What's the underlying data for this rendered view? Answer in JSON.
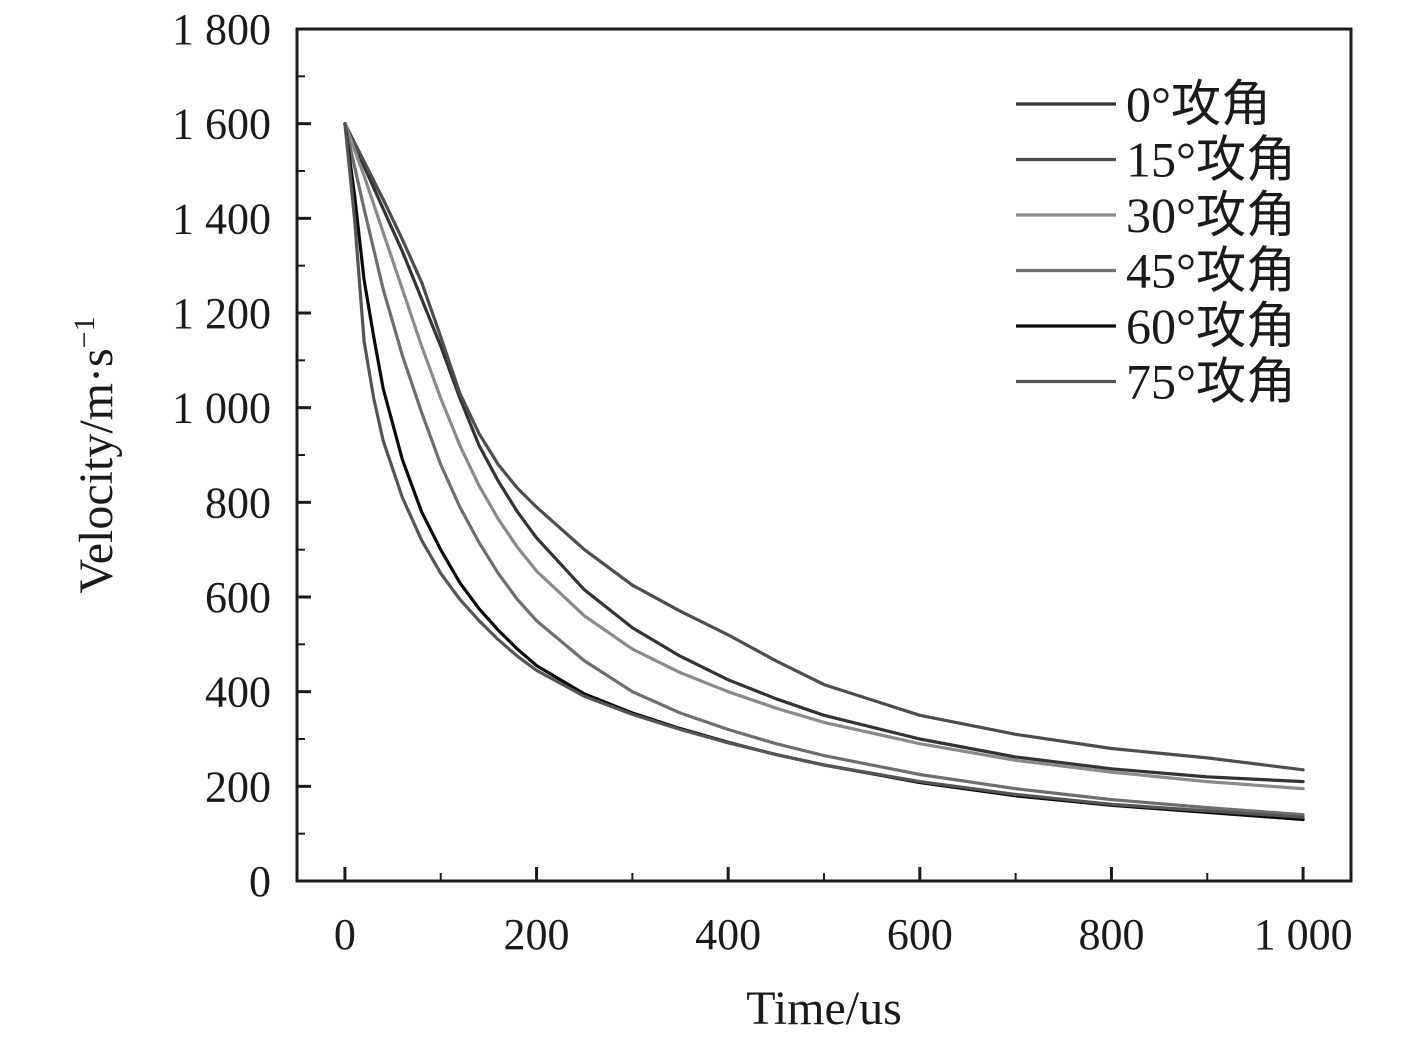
{
  "chart_data": {
    "type": "line",
    "xlabel": "Time/us",
    "ylabel": {
      "base": "Velocity/m·s",
      "superscript": "−1"
    },
    "xlim": [
      -50,
      1050
    ],
    "ylim": [
      0,
      1800
    ],
    "x_ticks": [
      0,
      200,
      400,
      600,
      800,
      1000
    ],
    "x_tick_labels": [
      "0",
      "200",
      "400",
      "600",
      "800",
      "1 000"
    ],
    "y_ticks": [
      0,
      200,
      400,
      600,
      800,
      1000,
      1200,
      1400,
      1600,
      1800
    ],
    "y_tick_labels": [
      "0",
      "200",
      "400",
      "600",
      "800",
      "1 000",
      "1 200",
      "1 400",
      "1 600",
      "1 800"
    ],
    "grid": false,
    "legend_position": "top-right",
    "series": [
      {
        "name": "0°攻角",
        "color": "#333333",
        "x": [
          0,
          20,
          40,
          60,
          80,
          100,
          120,
          140,
          160,
          180,
          200,
          250,
          300,
          350,
          400,
          450,
          500,
          600,
          700,
          800,
          900,
          1000
        ],
        "y": [
          1600,
          1510,
          1420,
          1330,
          1230,
          1130,
          1020,
          920,
          845,
          780,
          725,
          615,
          535,
          475,
          425,
          385,
          350,
          300,
          262,
          237,
          220,
          210
        ]
      },
      {
        "name": "15°攻角",
        "color": "#4d4d4d",
        "x": [
          0,
          20,
          40,
          60,
          80,
          100,
          120,
          140,
          160,
          180,
          200,
          250,
          300,
          350,
          400,
          450,
          500,
          600,
          700,
          800,
          900,
          1000
        ],
        "y": [
          1600,
          1520,
          1440,
          1355,
          1265,
          1150,
          1030,
          945,
          880,
          830,
          790,
          700,
          625,
          570,
          520,
          465,
          415,
          350,
          310,
          280,
          260,
          235
        ]
      },
      {
        "name": "30°攻角",
        "color": "#8a8a8a",
        "x": [
          0,
          20,
          40,
          60,
          80,
          100,
          120,
          140,
          160,
          180,
          200,
          250,
          300,
          350,
          400,
          450,
          500,
          600,
          700,
          800,
          900,
          1000
        ],
        "y": [
          1600,
          1490,
          1370,
          1250,
          1130,
          1020,
          920,
          835,
          765,
          705,
          655,
          560,
          490,
          440,
          400,
          365,
          335,
          290,
          255,
          230,
          210,
          195
        ]
      },
      {
        "name": "45°攻角",
        "color": "#6e6e6e",
        "x": [
          0,
          20,
          40,
          60,
          80,
          100,
          120,
          140,
          160,
          180,
          200,
          250,
          300,
          350,
          400,
          450,
          500,
          600,
          700,
          800,
          900,
          1000
        ],
        "y": [
          1600,
          1420,
          1250,
          1110,
          990,
          880,
          790,
          715,
          650,
          595,
          550,
          465,
          400,
          355,
          320,
          290,
          265,
          225,
          195,
          172,
          155,
          140
        ]
      },
      {
        "name": "60°攻角",
        "color": "#0a0a0a",
        "x": [
          0,
          10,
          20,
          30,
          40,
          60,
          80,
          100,
          120,
          140,
          160,
          180,
          200,
          250,
          300,
          350,
          400,
          450,
          500,
          600,
          700,
          800,
          900,
          1000
        ],
        "y": [
          1600,
          1450,
          1270,
          1150,
          1040,
          890,
          780,
          700,
          630,
          575,
          530,
          490,
          455,
          395,
          355,
          322,
          293,
          267,
          245,
          208,
          180,
          160,
          145,
          130
        ]
      },
      {
        "name": "75°攻角",
        "color": "#555555",
        "x": [
          0,
          10,
          20,
          30,
          40,
          60,
          80,
          100,
          120,
          140,
          160,
          180,
          200,
          250,
          300,
          350,
          400,
          450,
          500,
          600,
          700,
          800,
          900,
          1000
        ],
        "y": [
          1600,
          1400,
          1140,
          1020,
          930,
          810,
          720,
          650,
          595,
          550,
          510,
          475,
          445,
          390,
          352,
          320,
          292,
          267,
          245,
          210,
          183,
          162,
          148,
          135
        ]
      }
    ]
  }
}
